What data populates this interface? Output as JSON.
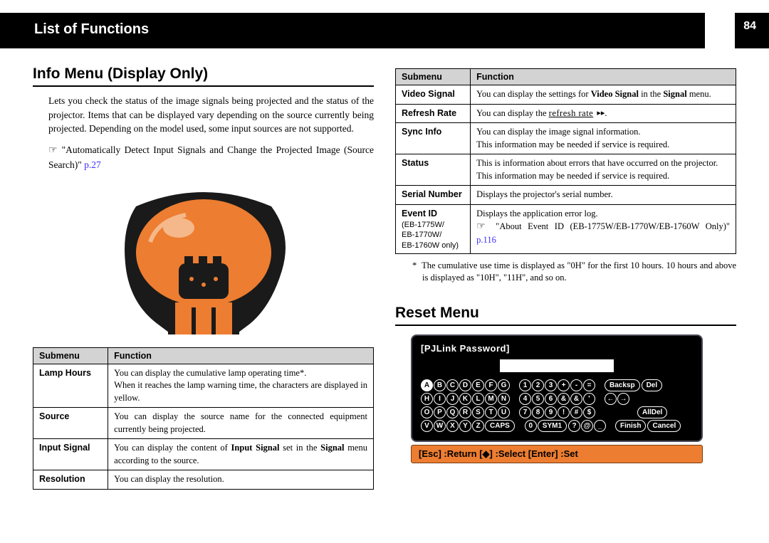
{
  "header": {
    "title": "List of Functions",
    "page_number": "84"
  },
  "left": {
    "heading": "Info Menu (Display Only)",
    "intro": "Lets you check the status of the image signals being projected and the status of the projector. Items that can be displayed vary depending on the source currently being projected. Depending on the model used, some input sources are not supported.",
    "bullet_prefix": "☞",
    "bullet_text": "\"Automatically Detect Input Signals and Change the Projected Image (Source Search)\" ",
    "bullet_ref": "p.27",
    "table": {
      "cols": [
        "Submenu",
        "Function"
      ],
      "rows": [
        {
          "sub": "Lamp Hours",
          "fn": "You can display the cumulative lamp operating time*.\nWhen it reaches the lamp warning time, the characters are displayed in yellow."
        },
        {
          "sub": "Source",
          "fn": "You can display the source name for the connected equipment currently being projected."
        },
        {
          "sub": "Input Signal",
          "fn": "You can display the content of <b>Input Signal</b> set in the <b>Signal</b> menu according to the source."
        },
        {
          "sub": "Resolution",
          "fn": "You can display the resolution."
        }
      ]
    }
  },
  "right": {
    "table": {
      "cols": [
        "Submenu",
        "Function"
      ],
      "rows": [
        {
          "sub": "Video Signal",
          "fn": "You can display the settings for <b>Video Signal</b> in the <b>Signal</b> menu."
        },
        {
          "sub": "Refresh Rate",
          "fn_plain": "You can display the ",
          "fn_link": "refresh rate",
          "fn_icon": "▸▸"
        },
        {
          "sub": "Sync Info",
          "fn": "You can display the image signal information.\nThis information may be needed if service is required."
        },
        {
          "sub": "Status",
          "fn": "This is information about errors that have occurred on the projector.\nThis information may be needed if service is required."
        },
        {
          "sub": "Serial Number",
          "fn": "Displays the projector's serial number."
        },
        {
          "sub": "Event ID",
          "sub_note": "(EB-1775W/\nEB-1770W/\nEB-1760W only)",
          "fn_line1": "Displays the application error log.",
          "fn_ptr": "☞",
          "fn_quote": "\"About Event ID (EB-1775W/EB-1770W/EB-1760W Only)\" ",
          "fn_ref": "p.116"
        }
      ]
    },
    "footnote_marker": "*",
    "footnote": "The cumulative use time is displayed as \"0H\" for the first 10 hours. 10 hours and above is displayed as \"10H\", \"11H\", and so on.",
    "reset_heading": "Reset Menu",
    "osd": {
      "title": "[PJLink Password]",
      "alpha_rows": [
        [
          "A",
          "B",
          "C",
          "D",
          "E",
          "F",
          "G"
        ],
        [
          "H",
          "I",
          "J",
          "K",
          "L",
          "M",
          "N"
        ],
        [
          "O",
          "P",
          "Q",
          "R",
          "S",
          "T",
          "U"
        ],
        [
          "V",
          "W",
          "X",
          "Y",
          "Z"
        ]
      ],
      "caps_key": "CAPS",
      "num_rows": [
        [
          "1",
          "2",
          "3",
          "+",
          "-",
          "="
        ],
        [
          "4",
          "5",
          "6",
          "&",
          "&",
          "'"
        ],
        [
          "7",
          "8",
          "9",
          "!",
          "#",
          "$"
        ],
        [
          "0"
        ]
      ],
      "sym_keys": [
        "SYM1",
        "?",
        "@",
        "_"
      ],
      "side_rows": [
        [
          "Backsp",
          "Del"
        ],
        [
          "←",
          "→"
        ],
        [
          "",
          "AllDel"
        ],
        [
          "Finish",
          "Cancel"
        ]
      ],
      "footer": "[Esc] :Return [◆] :Select [Enter] :Set"
    }
  },
  "colors": {
    "lamp_orange": "#ed7d31",
    "lamp_dark": "#1a1a1a",
    "link_blue": "#3a2fff"
  }
}
